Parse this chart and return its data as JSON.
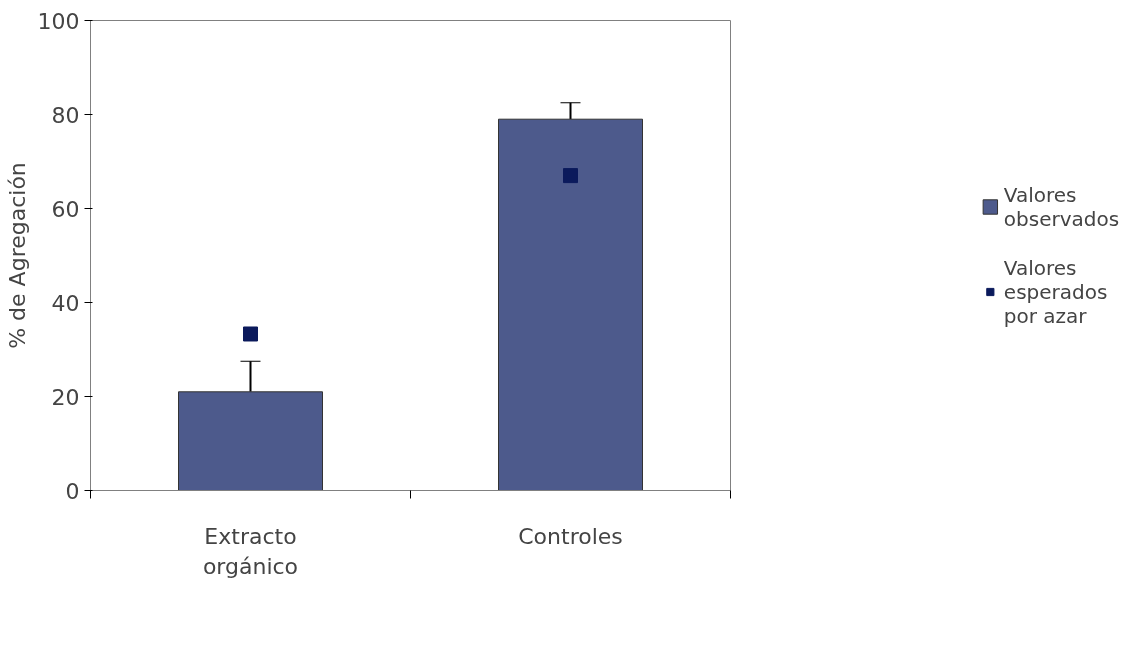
{
  "chart_data": {
    "type": "bar",
    "ylabel": "% de Agregación",
    "categories": [
      "Extracto orgánico",
      "Controles"
    ],
    "series": [
      {
        "name": "Valores observados",
        "color": "#4d5a8c",
        "values": [
          21,
          79
        ],
        "errors": [
          [
            21,
            27.5
          ],
          [
            79,
            82.5
          ]
        ]
      },
      {
        "name": "Valores esperados por azar",
        "type": "scatter",
        "color": "#0b1a5c",
        "x": [
          "Extracto orgánico",
          "Controles"
        ],
        "values": [
          33.3,
          67
        ],
        "marker": "square"
      }
    ],
    "ylim": [
      0,
      100
    ],
    "yticks": [
      0,
      20,
      40,
      60,
      80,
      100
    ],
    "grid": false,
    "legend": "right"
  }
}
